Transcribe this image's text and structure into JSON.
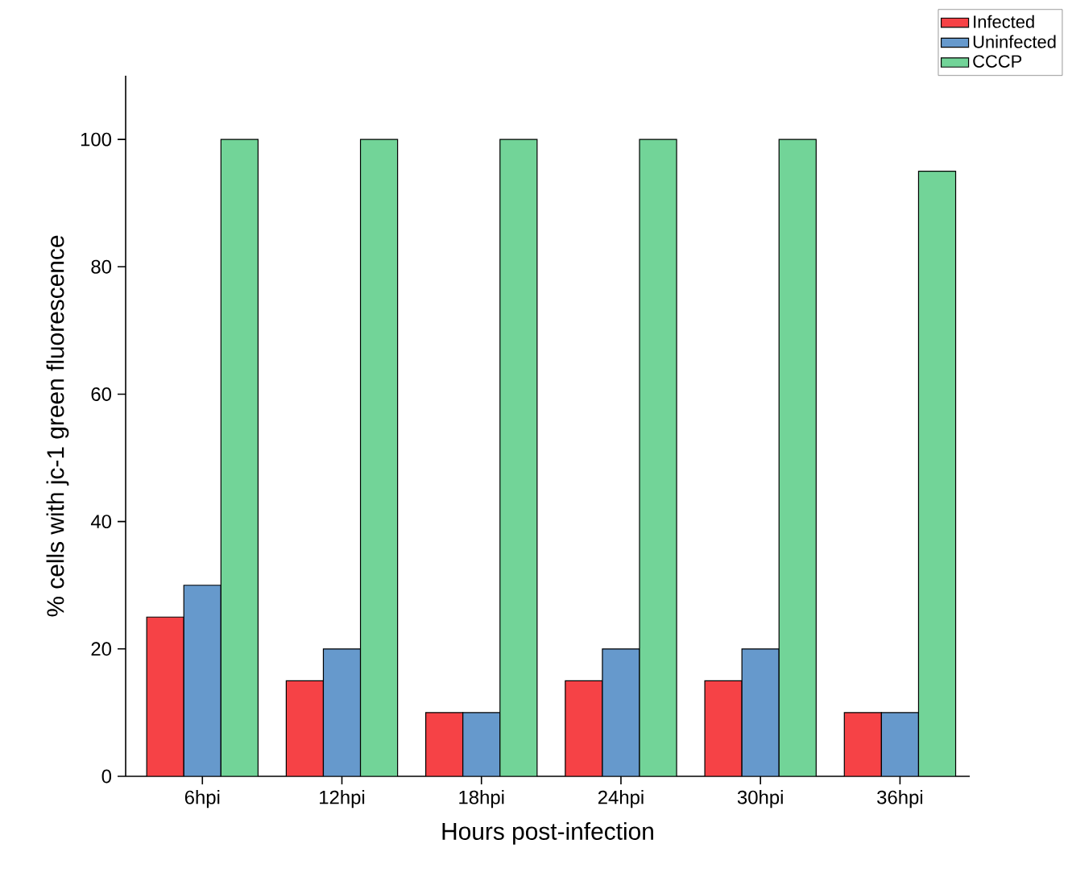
{
  "chart_data": {
    "type": "bar",
    "xlabel": "Hours post-infection",
    "ylabel": "% cells with jc-1 green fluorescence",
    "categories": [
      "6hpi",
      "12hpi",
      "18hpi",
      "24hpi",
      "30hpi",
      "36hpi"
    ],
    "series": [
      {
        "name": "Infected",
        "color": "#f64246",
        "values": [
          25,
          15,
          10,
          15,
          15,
          10
        ]
      },
      {
        "name": "Uninfected",
        "color": "#6699cc",
        "values": [
          30,
          20,
          10,
          20,
          20,
          10
        ]
      },
      {
        "name": "CCCP",
        "color": "#72d498",
        "values": [
          100,
          100,
          100,
          100,
          100,
          95
        ]
      }
    ],
    "ylim": [
      0,
      110
    ],
    "yticks": [
      0,
      20,
      40,
      60,
      80,
      100
    ],
    "grid": false,
    "legend": "top right"
  }
}
